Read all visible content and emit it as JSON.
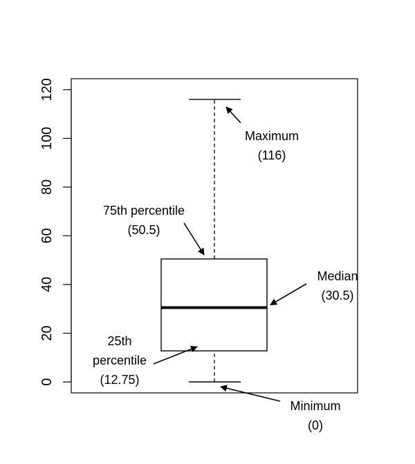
{
  "chart_data": {
    "type": "box",
    "title": "",
    "xlabel": "",
    "ylabel": "",
    "ylim": [
      -4.5,
      124.5
    ],
    "yticks": [
      0,
      20,
      40,
      60,
      80,
      100,
      120
    ],
    "grid": false,
    "box": {
      "min": 0,
      "q1": 12.75,
      "median": 30.5,
      "q3": 50.5,
      "max": 116
    },
    "annotations": [
      {
        "id": "max",
        "lines": [
          "Maximum",
          "(116)"
        ],
        "target": "max"
      },
      {
        "id": "q3",
        "lines": [
          "75th percentile",
          "(50.5)"
        ],
        "target": "q3"
      },
      {
        "id": "median",
        "lines": [
          "Median",
          "(30.5)"
        ],
        "target": "median"
      },
      {
        "id": "q1",
        "lines": [
          "25th",
          "percentile",
          "(12.75)"
        ],
        "target": "q1"
      },
      {
        "id": "min",
        "lines": [
          "Minimum",
          "(0)"
        ],
        "target": "min"
      }
    ]
  }
}
